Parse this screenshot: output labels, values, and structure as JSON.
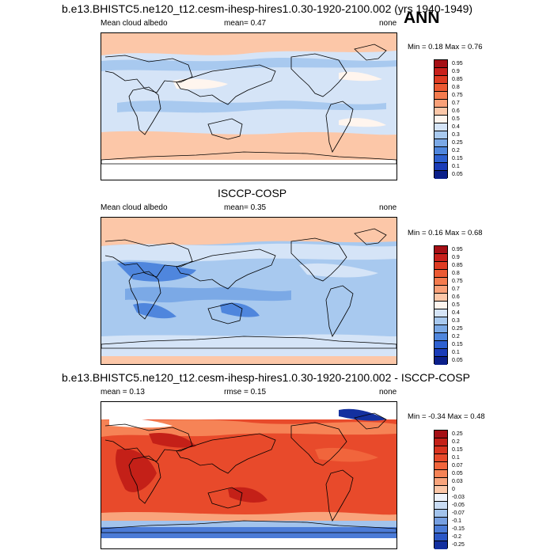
{
  "season": "ANN",
  "panels": [
    {
      "title": "b.e13.BHISTC5.ne120_t12.cesm-ihesp-hires1.0.30-1920-2100.002 (yrs 1940-1949)",
      "left": "Mean cloud albedo",
      "mid": "mean=   0.47",
      "right": "none",
      "minmax": "Min =   0.18 Max =   0.76",
      "levels": [
        "0.95",
        "0.9",
        "0.85",
        "0.8",
        "0.75",
        "0.7",
        "0.6",
        "0.5",
        "0.4",
        "0.3",
        "0.25",
        "0.2",
        "0.15",
        "0.1",
        "0.05"
      ],
      "colors": [
        "#a50f15",
        "#c8201b",
        "#de3b22",
        "#ec5a33",
        "#f47b4e",
        "#f9a078",
        "#fcc7a8",
        "#fff5ee",
        "#d5e4f7",
        "#a8c9ef",
        "#7ba9e6",
        "#4f86dd",
        "#2d60d0",
        "#1a3cb8",
        "#0b1f8a"
      ]
    },
    {
      "title": "ISCCP-COSP",
      "left": "Mean cloud albedo",
      "mid": "mean=   0.35",
      "right": "none",
      "minmax": "Min =   0.16 Max =   0.68",
      "levels": [
        "0.95",
        "0.9",
        "0.85",
        "0.8",
        "0.75",
        "0.7",
        "0.6",
        "0.5",
        "0.4",
        "0.3",
        "0.25",
        "0.2",
        "0.15",
        "0.1",
        "0.05"
      ],
      "colors": [
        "#a50f15",
        "#c8201b",
        "#de3b22",
        "#ec5a33",
        "#f47b4e",
        "#f9a078",
        "#fcc7a8",
        "#fff5ee",
        "#d5e4f7",
        "#a8c9ef",
        "#7ba9e6",
        "#4f86dd",
        "#2d60d0",
        "#1a3cb8",
        "#0b1f8a"
      ]
    },
    {
      "title": "b.e13.BHISTC5.ne120_t12.cesm-ihesp-hires1.0.30-1920-2100.002 - ISCCP-COSP",
      "left": "mean =   0.13",
      "mid": "rmse =   0.15",
      "right": "none",
      "minmax": "Min =  -0.34 Max =   0.48",
      "levels": [
        "0.25",
        "0.2",
        "0.15",
        "0.1",
        "0.07",
        "0.05",
        "0.03",
        "0",
        "-0.03",
        "-0.05",
        "-0.07",
        "-0.1",
        "-0.15",
        "-0.2",
        "-0.25"
      ],
      "colors": [
        "#a50f15",
        "#c42018",
        "#d9331f",
        "#e84a2b",
        "#f1653c",
        "#f68356",
        "#f9a47c",
        "#fcc7a8",
        "#eef3fb",
        "#c9dcf4",
        "#a2c3ec",
        "#769fe1",
        "#4b7bd7",
        "#2b57c6",
        "#13309f"
      ]
    }
  ],
  "chart_data": [
    {
      "type": "heatmap",
      "title": "b.e13.BHISTC5.ne120_t12.cesm-ihesp-hires1.0.30-1920-2100.002 (yrs 1940-1949)",
      "variable": "Mean cloud albedo",
      "mean": 0.47,
      "min": 0.18,
      "max": 0.76,
      "season": "ANN"
    },
    {
      "type": "heatmap",
      "title": "ISCCP-COSP",
      "variable": "Mean cloud albedo",
      "mean": 0.35,
      "min": 0.16,
      "max": 0.68
    },
    {
      "type": "heatmap",
      "title": "b.e13.BHISTC5.ne120_t12.cesm-ihesp-hires1.0.30-1920-2100.002 - ISCCP-COSP",
      "mean": 0.13,
      "rmse": 0.15,
      "min": -0.34,
      "max": 0.48
    }
  ]
}
